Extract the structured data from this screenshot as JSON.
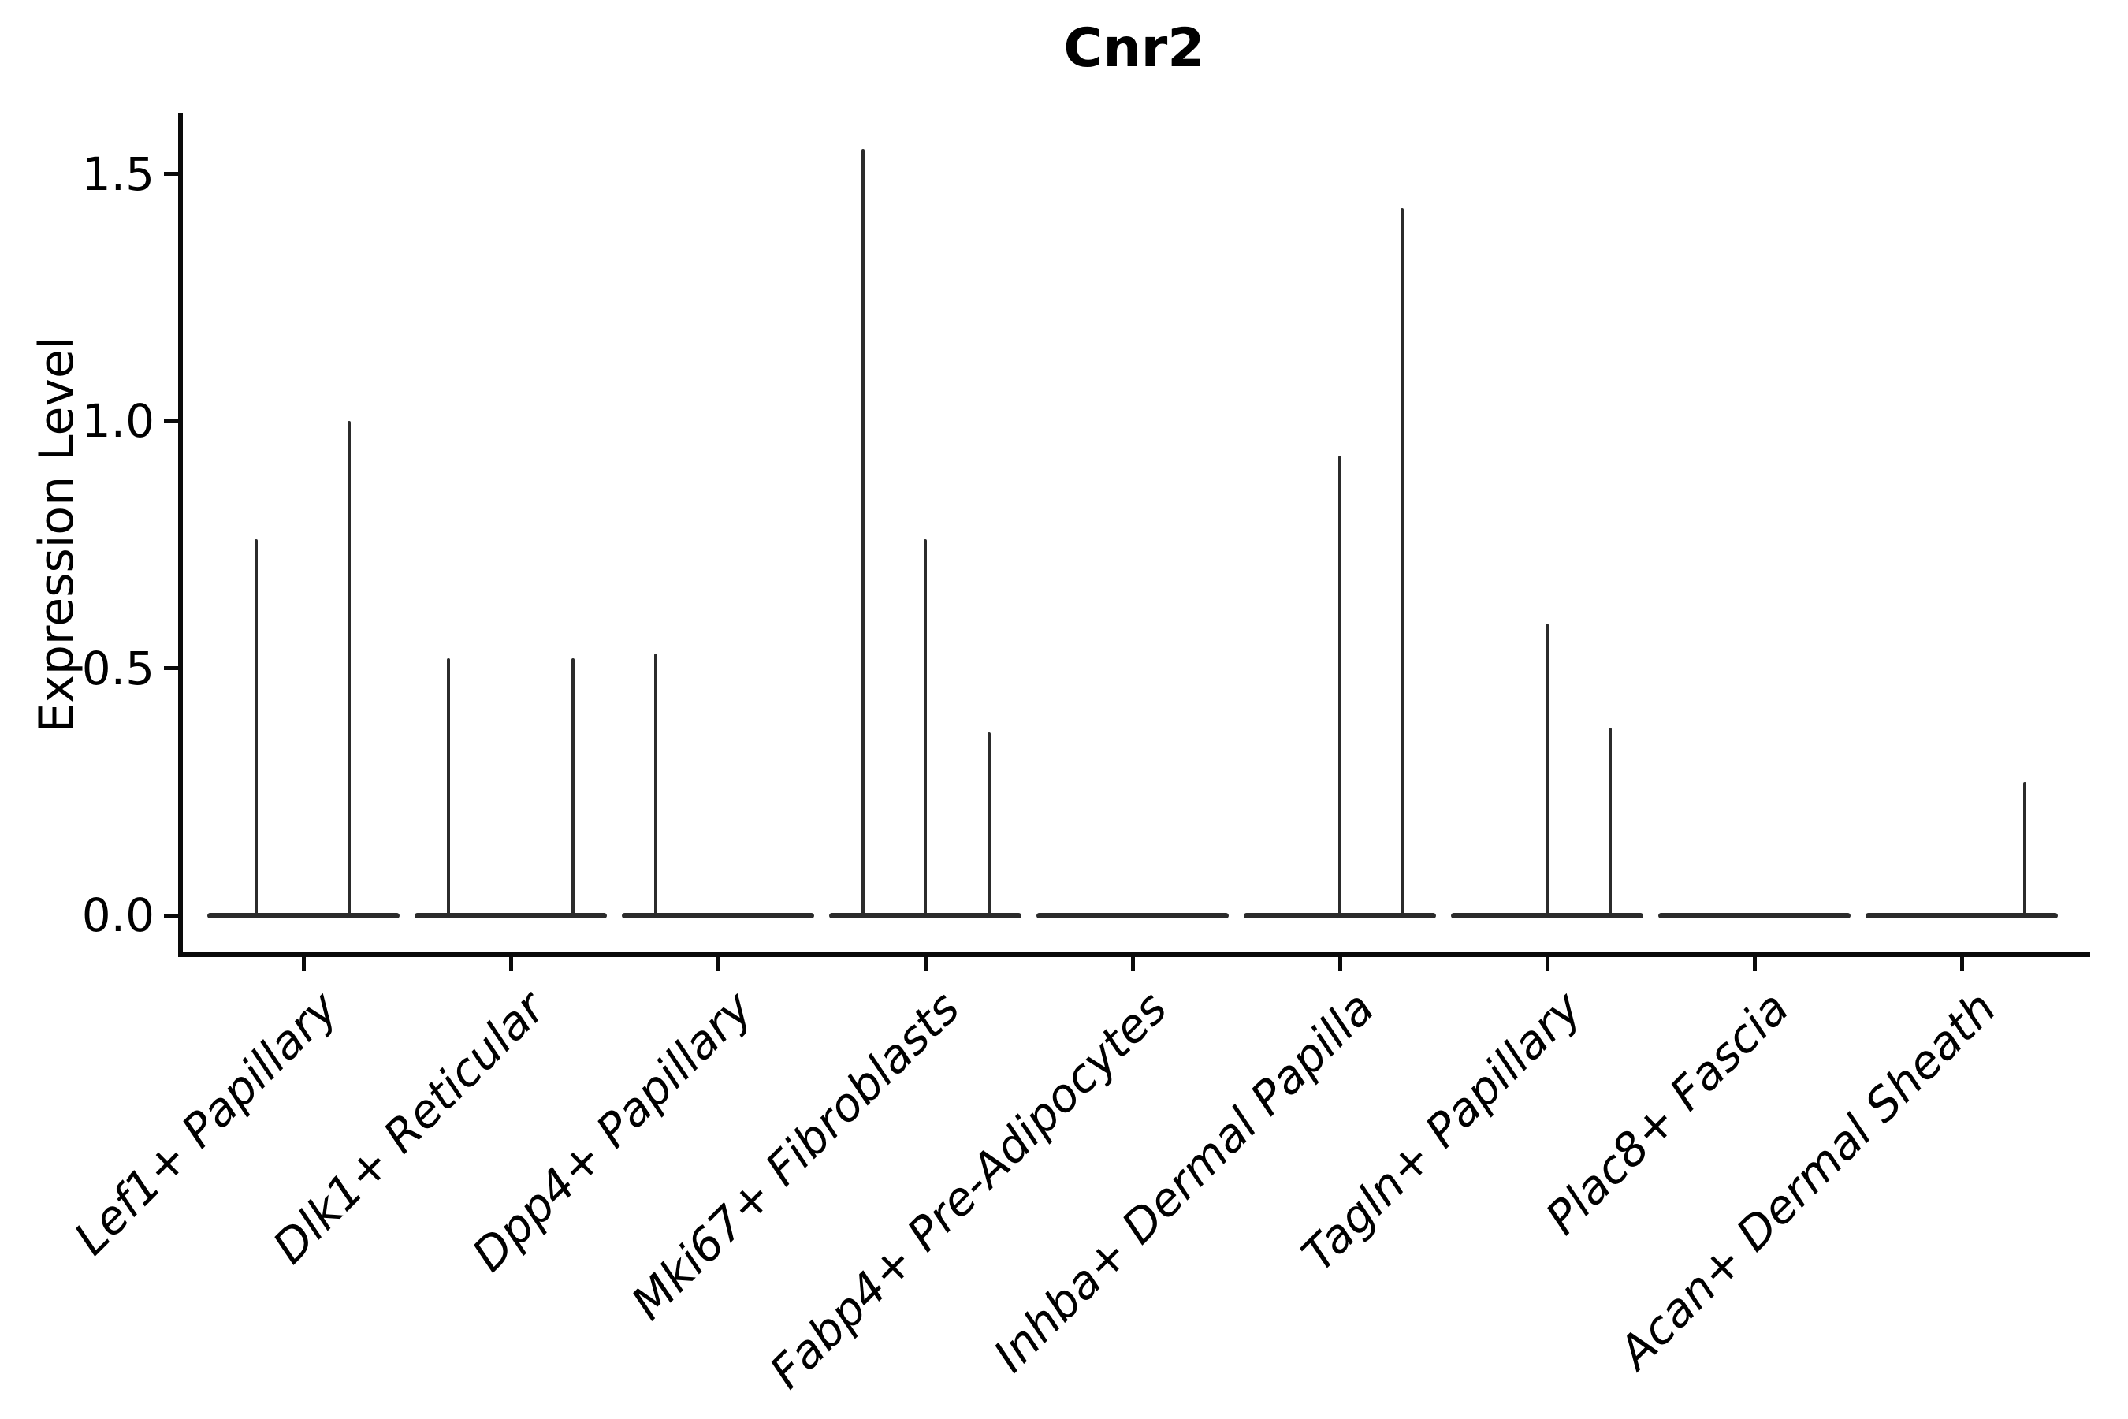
{
  "chart_data": {
    "type": "violin",
    "title": "Cnr2",
    "ylabel": "Expression Level",
    "xlabel": "",
    "yticks": [
      "0.0",
      "0.5",
      "1.0",
      "1.5"
    ],
    "ylim": [
      0,
      1.62
    ],
    "grid": false,
    "legend": "none",
    "categories": [
      "Lef1+ Papillary",
      "Dlk1+ Reticular",
      "Dpp4+ Papillary",
      "Mki67+ Fibroblasts",
      "Fabp4+ Pre-Adipocytes",
      "Inhba+ Dermal Papilla",
      "Tagln+ Papillary",
      "Plac8+ Fascia",
      "Acan+ Dermal Sheath"
    ],
    "violins": [
      {
        "category": "Lef1+ Papillary",
        "spikes": [
          {
            "dx": -60,
            "value": 0.76
          },
          {
            "dx": 58,
            "value": 1.0
          }
        ]
      },
      {
        "category": "Dlk1+ Reticular",
        "spikes": [
          {
            "dx": -79,
            "value": 0.52
          },
          {
            "dx": 79,
            "value": 0.52
          }
        ]
      },
      {
        "category": "Dpp4+ Papillary",
        "spikes": [
          {
            "dx": -79,
            "value": 0.53
          }
        ]
      },
      {
        "category": "Mki67+ Fibroblasts",
        "spikes": [
          {
            "dx": -79,
            "value": 1.55
          },
          {
            "dx": 0,
            "value": 0.76
          },
          {
            "dx": 81,
            "value": 0.37
          }
        ]
      },
      {
        "category": "Fabp4+ Pre-Adipocytes",
        "spikes": []
      },
      {
        "category": "Inhba+ Dermal Papilla",
        "spikes": [
          {
            "dx": 0,
            "value": 0.93
          },
          {
            "dx": 79,
            "value": 1.43
          }
        ]
      },
      {
        "category": "Tagln+ Papillary",
        "spikes": [
          {
            "dx": 0,
            "value": 0.59
          },
          {
            "dx": 80,
            "value": 0.38
          }
        ]
      },
      {
        "category": "Plac8+ Fascia",
        "spikes": []
      },
      {
        "category": "Acan+ Dermal Sheath",
        "spikes": [
          {
            "dx": 80,
            "value": 0.27
          }
        ]
      }
    ],
    "colors": {
      "line": "#2b2b2b",
      "axis": "#0a0a0a",
      "text": "#000000",
      "background": "#ffffff"
    }
  }
}
